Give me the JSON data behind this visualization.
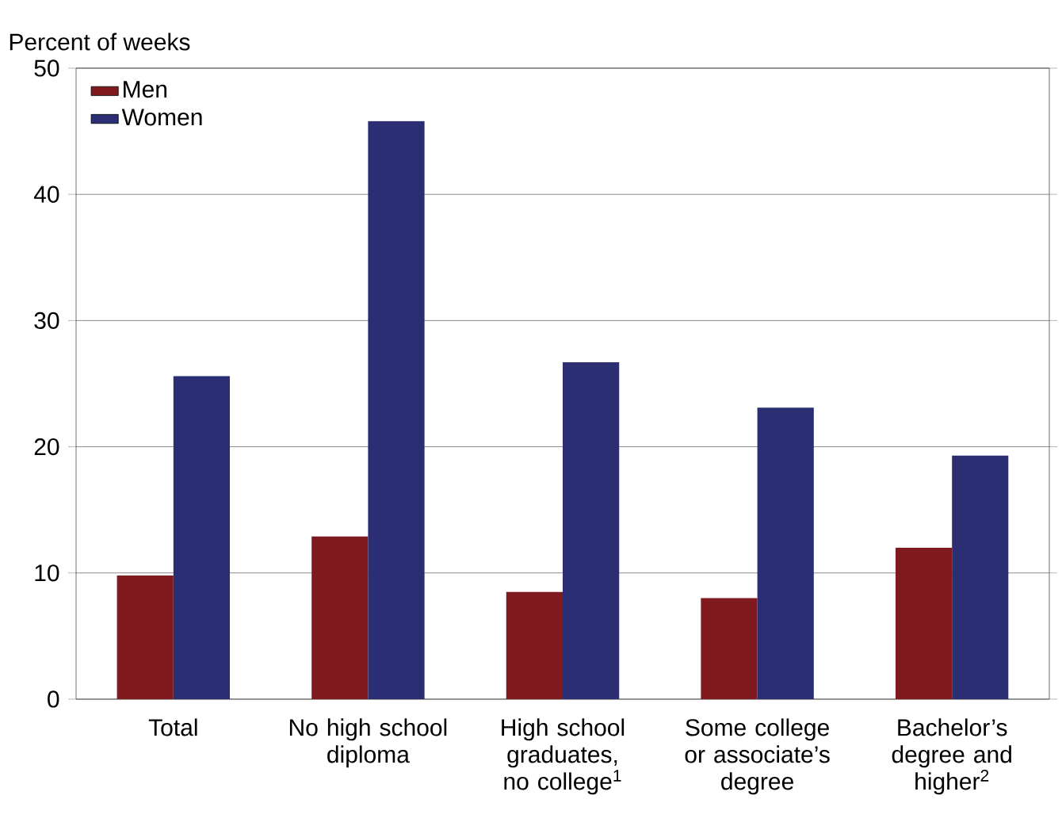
{
  "chart_data": {
    "type": "bar",
    "ylabel": "Percent of weeks",
    "categories": [
      "Total",
      "No high school diploma",
      "High school graduates, no college$^{1}$",
      "Some college or associate’s degree",
      "Bachelor’s degree and higher$^{2}$"
    ],
    "series": [
      {
        "name": "Men",
        "color": "#7f1a1f",
        "values": [
          9.8,
          12.9,
          8.5,
          8.0,
          12.0
        ]
      },
      {
        "name": "Women",
        "color": "#2b2e72",
        "values": [
          25.6,
          45.8,
          26.7,
          23.1,
          19.3
        ]
      }
    ],
    "ylim": [
      0,
      50
    ],
    "yticks": [
      0,
      10,
      20,
      30,
      40,
      50
    ],
    "grid": "y",
    "legend": "top left"
  }
}
